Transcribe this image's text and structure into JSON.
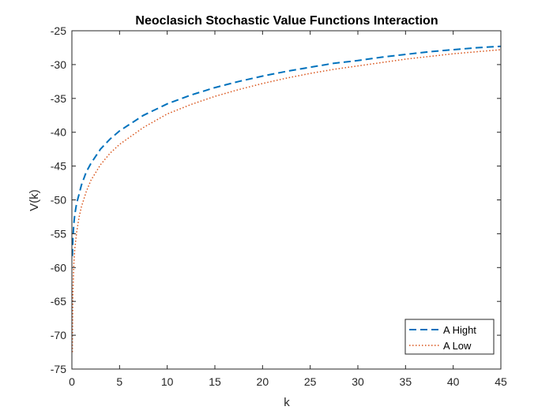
{
  "chart_data": {
    "type": "line",
    "title": "Neoclasich Stochastic Value Functions Interaction",
    "xlabel": "k",
    "ylabel": "V(k)",
    "xlim": [
      0,
      45
    ],
    "ylim": [
      -75,
      -25
    ],
    "xticks": [
      0,
      5,
      10,
      15,
      20,
      25,
      30,
      35,
      40,
      45
    ],
    "yticks": [
      -25,
      -30,
      -35,
      -40,
      -45,
      -50,
      -55,
      -60,
      -65,
      -70,
      -75
    ],
    "grid": false,
    "legend_position": "bottom-right",
    "series": [
      {
        "name": "A Hight",
        "color": "#0072BD",
        "line_style": "dashed",
        "x": [
          0.05,
          0.1,
          0.2,
          0.3,
          0.5,
          0.75,
          1,
          1.5,
          2,
          3,
          4,
          5,
          7.5,
          10,
          12.5,
          15,
          17.5,
          20,
          22.5,
          25,
          27.5,
          30,
          32.5,
          35,
          37.5,
          40,
          42.5,
          45
        ],
        "values": [
          -58.3,
          -55.9,
          -53.6,
          -52.2,
          -50.5,
          -49.2,
          -47.8,
          -45.9,
          -44.6,
          -42.5,
          -41.0,
          -39.8,
          -37.5,
          -35.8,
          -34.5,
          -33.4,
          -32.5,
          -31.7,
          -31.0,
          -30.4,
          -29.8,
          -29.4,
          -28.9,
          -28.5,
          -28.1,
          -27.8,
          -27.5,
          -27.3
        ]
      },
      {
        "name": "A Low",
        "color": "#D95319",
        "line_style": "dotted",
        "x": [
          0.05,
          0.1,
          0.2,
          0.3,
          0.5,
          0.75,
          1,
          1.5,
          2,
          3,
          4,
          5,
          7.5,
          10,
          12.5,
          15,
          17.5,
          20,
          22.5,
          25,
          27.5,
          30,
          32.5,
          35,
          37.5,
          40,
          42.5,
          45
        ],
        "values": [
          -72.5,
          -64.0,
          -59.5,
          -57.3,
          -54.8,
          -52.6,
          -51.0,
          -48.8,
          -47.1,
          -44.8,
          -43.1,
          -41.8,
          -39.3,
          -37.3,
          -35.9,
          -34.7,
          -33.7,
          -32.8,
          -32.0,
          -31.3,
          -30.7,
          -30.2,
          -29.7,
          -29.2,
          -28.8,
          -28.4,
          -28.1,
          -27.8
        ]
      }
    ]
  }
}
